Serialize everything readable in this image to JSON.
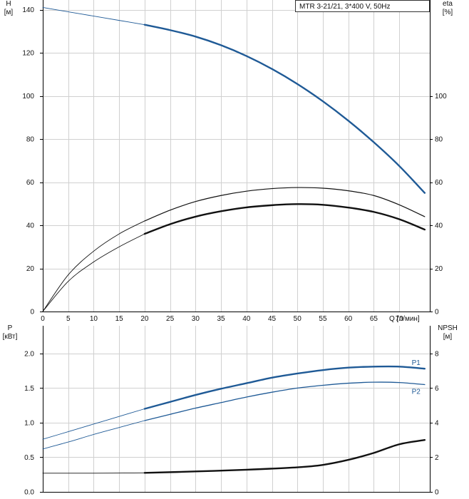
{
  "chart_data": [
    {
      "type": "line",
      "title": "MTR 3-21/21, 3*400 V, 50Hz",
      "y_left_label_line1": "H",
      "y_left_label_line2": "[м]",
      "y_right_label_line1": "eta",
      "y_right_label_line2": "[%]",
      "x_label": "Q [л/мин]",
      "xlim": [
        0,
        76
      ],
      "ylim_left": [
        0,
        160
      ],
      "ylim_right": [
        0,
        160
      ],
      "x_ticks": [
        0,
        5,
        10,
        15,
        20,
        25,
        30,
        35,
        40,
        45,
        50,
        55,
        60,
        65,
        70
      ],
      "y_left_ticks": [
        0,
        20,
        40,
        60,
        80,
        100,
        120,
        140
      ],
      "y_right_ticks": [
        0,
        20,
        40,
        60,
        80,
        100
      ],
      "grid": true,
      "series": [
        {
          "axis": "left",
          "color": "#1f5a96",
          "width": 2.4,
          "style": "bold-from-20",
          "points": [
            [
              0,
              141
            ],
            [
              5,
              139
            ],
            [
              10,
              137
            ],
            [
              15,
              135
            ],
            [
              20,
              133
            ],
            [
              25,
              130.5
            ],
            [
              30,
              127.5
            ],
            [
              35,
              123.5
            ],
            [
              40,
              118.5
            ],
            [
              45,
              112.5
            ],
            [
              50,
              105.5
            ],
            [
              55,
              97.5
            ],
            [
              60,
              88.5
            ],
            [
              65,
              78.5
            ],
            [
              70,
              67.5
            ],
            [
              75,
              55
            ]
          ]
        },
        {
          "axis": "right",
          "color": "#111111",
          "width": 1.2,
          "style": "bold-from-20",
          "points": [
            [
              0,
              0
            ],
            [
              5,
              17
            ],
            [
              10,
              28
            ],
            [
              15,
              36
            ],
            [
              20,
              42
            ],
            [
              25,
              47
            ],
            [
              30,
              51
            ],
            [
              35,
              53.8
            ],
            [
              40,
              55.8
            ],
            [
              45,
              57
            ],
            [
              50,
              57.5
            ],
            [
              55,
              57.2
            ],
            [
              60,
              56
            ],
            [
              65,
              53.8
            ],
            [
              70,
              49.5
            ],
            [
              75,
              44
            ]
          ]
        },
        {
          "axis": "right",
          "color": "#111111",
          "width": 2.4,
          "style": "bold-from-20",
          "points": [
            [
              0,
              0
            ],
            [
              5,
              14
            ],
            [
              10,
              23
            ],
            [
              15,
              30
            ],
            [
              20,
              36
            ],
            [
              25,
              40.5
            ],
            [
              30,
              44
            ],
            [
              35,
              46.5
            ],
            [
              40,
              48.3
            ],
            [
              45,
              49.3
            ],
            [
              50,
              49.8
            ],
            [
              55,
              49.5
            ],
            [
              60,
              48.2
            ],
            [
              65,
              46.2
            ],
            [
              70,
              42.8
            ],
            [
              75,
              38
            ]
          ]
        }
      ]
    },
    {
      "type": "line",
      "y_left_label_line1": "P",
      "y_left_label_line2": "[кВт]",
      "y_right_label_line1": "NPSH",
      "y_right_label_line2": "[м]",
      "xlim": [
        0,
        76
      ],
      "ylim_left": [
        0,
        2.4
      ],
      "ylim_right": [
        0,
        9.6
      ],
      "x_ticks": [
        0,
        5,
        10,
        15,
        20,
        25,
        30,
        35,
        40,
        45,
        50,
        55,
        60,
        65,
        70
      ],
      "y_left_ticks": [
        "0.0",
        "0.5",
        "1.0",
        "1.5",
        "2.0"
      ],
      "y_right_ticks": [
        0,
        2,
        4,
        6,
        8
      ],
      "grid": true,
      "series": [
        {
          "name": "P1",
          "axis": "left",
          "color": "#1f5a96",
          "width": 2.4,
          "style": "bold-from-20",
          "points": [
            [
              0,
              0.76
            ],
            [
              5,
              0.87
            ],
            [
              10,
              0.98
            ],
            [
              15,
              1.09
            ],
            [
              20,
              1.2
            ],
            [
              25,
              1.3
            ],
            [
              30,
              1.4
            ],
            [
              35,
              1.49
            ],
            [
              40,
              1.57
            ],
            [
              45,
              1.65
            ],
            [
              50,
              1.71
            ],
            [
              55,
              1.76
            ],
            [
              60,
              1.795
            ],
            [
              65,
              1.81
            ],
            [
              70,
              1.81
            ],
            [
              75,
              1.78
            ]
          ]
        },
        {
          "name": "P2",
          "axis": "left",
          "color": "#1f5a96",
          "width": 1.3,
          "style": "bold-from-20",
          "points": [
            [
              0,
              0.62
            ],
            [
              5,
              0.72
            ],
            [
              10,
              0.83
            ],
            [
              15,
              0.93
            ],
            [
              20,
              1.03
            ],
            [
              25,
              1.12
            ],
            [
              30,
              1.21
            ],
            [
              35,
              1.29
            ],
            [
              40,
              1.37
            ],
            [
              45,
              1.44
            ],
            [
              50,
              1.5
            ],
            [
              55,
              1.54
            ],
            [
              60,
              1.57
            ],
            [
              65,
              1.585
            ],
            [
              70,
              1.58
            ],
            [
              75,
              1.55
            ]
          ]
        },
        {
          "axis": "right",
          "color": "#111111",
          "width": 2.4,
          "style": "bold-from-20",
          "points": [
            [
              0,
              1.08
            ],
            [
              10,
              1.08
            ],
            [
              20,
              1.1
            ],
            [
              30,
              1.18
            ],
            [
              40,
              1.28
            ],
            [
              50,
              1.42
            ],
            [
              55,
              1.56
            ],
            [
              60,
              1.85
            ],
            [
              65,
              2.25
            ],
            [
              70,
              2.75
            ],
            [
              75,
              3.0
            ]
          ]
        }
      ]
    }
  ]
}
